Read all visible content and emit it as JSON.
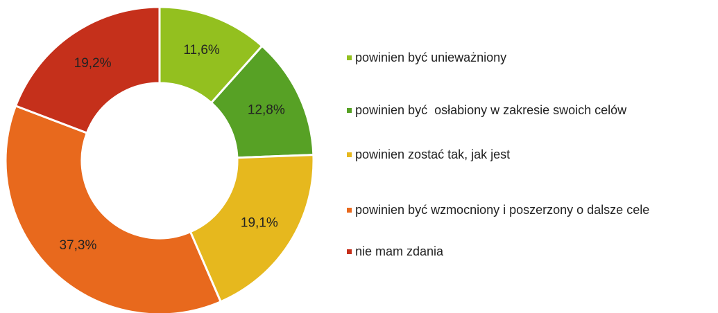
{
  "chart_data": {
    "type": "pie",
    "categories": [
      "powinien być unieważniony",
      "powinien być  osłabiony w zakresie swoich celów",
      "powinien zostać tak, jak jest",
      "powinien być wzmocniony i poszerzony o dalsze cele",
      "nie mam zdania"
    ],
    "values": [
      11.6,
      12.8,
      19.1,
      37.3,
      19.2
    ],
    "value_labels": [
      "11,6%",
      "12,8%",
      "19,1%",
      "37,3%",
      "19,2%"
    ],
    "colors": [
      "#93c01f",
      "#57a125",
      "#e6b81e",
      "#e8691d",
      "#c5301b"
    ],
    "legend": "right"
  }
}
